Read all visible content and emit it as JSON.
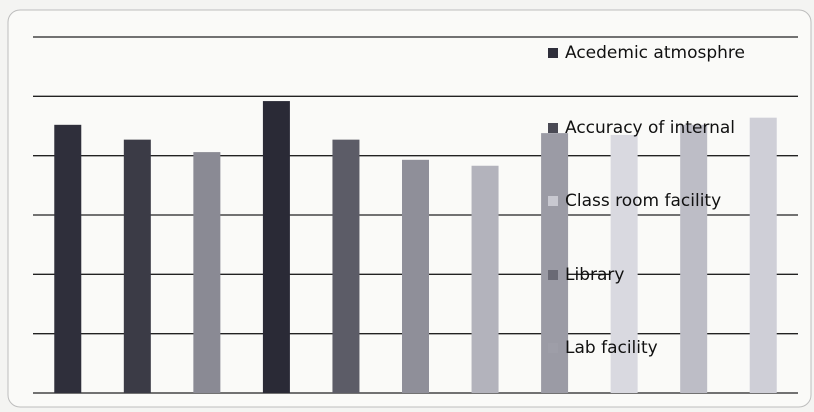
{
  "chart_data": {
    "type": "bar",
    "categories": [
      null,
      null,
      null,
      null,
      null,
      null,
      null,
      null,
      null,
      null,
      null
    ],
    "values": [
      4.52,
      4.27,
      4.06,
      4.92,
      4.27,
      3.93,
      3.83,
      4.38,
      4.35,
      4.52,
      4.64
    ],
    "colors": [
      "#2f2f3b",
      "#3b3b46",
      "#8a8a94",
      "#2a2a36",
      "#5c5c67",
      "#8f8f99",
      "#b3b3bc",
      "#9b9ba5",
      "#d9d9e0",
      "#bdbdc6",
      "#cfcfd7"
    ],
    "ylim": [
      0,
      6
    ],
    "yticks": [
      0,
      1,
      2,
      3,
      4,
      5,
      6
    ],
    "grid": true,
    "legend": [
      {
        "name": "Acedemic atmosphre",
        "color": "#2f2f3b"
      },
      {
        "name": "Accuracy of internal",
        "color": "#4a4a55"
      },
      {
        "name": "Class room facility",
        "color": "#c8c8d0"
      },
      {
        "name": "Library",
        "color": "#6a6a75"
      },
      {
        "name": "Lab facility",
        "color": "#9e9ea8"
      }
    ]
  }
}
